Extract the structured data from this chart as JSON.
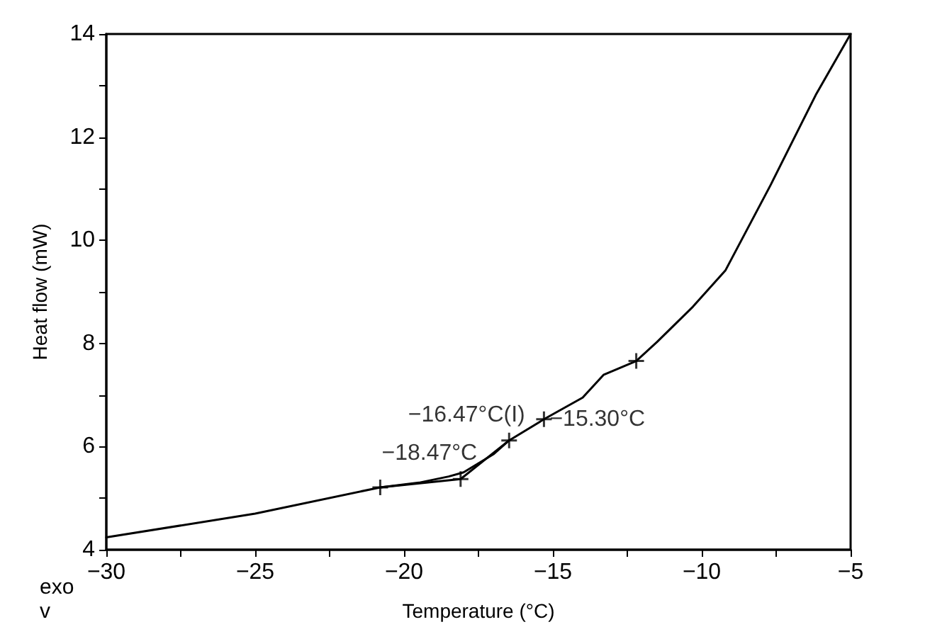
{
  "chart_data": {
    "type": "line",
    "xlabel": "Temperature (°C)",
    "ylabel": "Heat flow (mW)",
    "xlim": [
      -30,
      -5
    ],
    "ylim": [
      4,
      14
    ],
    "xticks": [
      {
        "value": -30,
        "label": "−30"
      },
      {
        "value": -27.5,
        "label": null
      },
      {
        "value": -25,
        "label": "−25"
      },
      {
        "value": -22.5,
        "label": null
      },
      {
        "value": -20,
        "label": "−20"
      },
      {
        "value": -17.5,
        "label": null
      },
      {
        "value": -15,
        "label": "−15"
      },
      {
        "value": -12.5,
        "label": null
      },
      {
        "value": -10,
        "label": "−10"
      },
      {
        "value": -7.5,
        "label": null
      },
      {
        "value": -5,
        "label": "−5"
      }
    ],
    "yticks": [
      4,
      {
        "value": 5,
        "label": null
      },
      6,
      {
        "value": 7,
        "label": null
      },
      8,
      {
        "value": 9,
        "label": null
      },
      10,
      {
        "value": 11,
        "label": null
      },
      12,
      {
        "value": 13,
        "label": null
      },
      14
    ],
    "grid": false,
    "series": [
      {
        "color": "#000000",
        "marker": "none",
        "x": [
          -30,
          -25,
          -20.8,
          -19.5,
          -18.5,
          -18,
          -17,
          -16.47,
          -15.3,
          -14,
          -13.3,
          -12.2,
          -11.5,
          -10.3,
          -9.2,
          -7.68,
          -6.15,
          -5
        ],
        "values": [
          4.24,
          4.7,
          5.21,
          5.3,
          5.42,
          5.5,
          5.85,
          6.12,
          6.53,
          6.95,
          7.39,
          7.66,
          8.03,
          8.71,
          9.42,
          11.08,
          12.84,
          14
        ]
      },
      {
        "color": "#000000",
        "marker": "none",
        "x": [
          -20.8,
          -18.1,
          -16.47
        ],
        "values": [
          5.21,
          5.37,
          6.12
        ]
      },
      {
        "type": "scatter",
        "color": "#000000",
        "marker": "cross",
        "x": [
          -20.8,
          -18.1,
          -16.47,
          -15.3,
          -12.2
        ],
        "values": [
          5.21,
          5.37,
          6.12,
          6.53,
          7.66
        ]
      }
    ],
    "annotations": [
      {
        "text": "−18.47°C",
        "x": -18.1,
        "y": 5.37
      },
      {
        "text": "−16.47°C(I)",
        "x": -16.47,
        "y": 6.12
      },
      {
        "text": "−15.30°C",
        "x": -15.3,
        "y": 6.53
      },
      "exo\nv"
    ]
  }
}
